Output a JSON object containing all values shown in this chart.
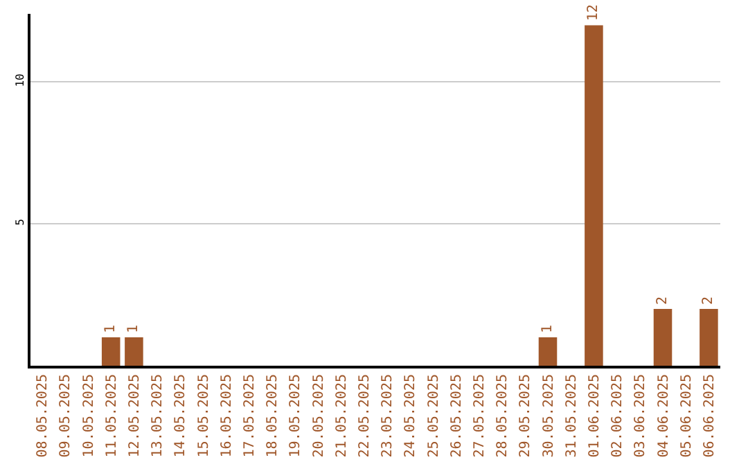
{
  "chart_data": {
    "type": "bar",
    "categories": [
      "08.05.2025",
      "09.05.2025",
      "10.05.2025",
      "11.05.2025",
      "12.05.2025",
      "13.05.2025",
      "14.05.2025",
      "15.05.2025",
      "16.05.2025",
      "17.05.2025",
      "18.05.2025",
      "19.05.2025",
      "20.05.2025",
      "21.05.2025",
      "22.05.2025",
      "23.05.2025",
      "24.05.2025",
      "25.05.2025",
      "26.05.2025",
      "27.05.2025",
      "28.05.2025",
      "29.05.2025",
      "30.05.2025",
      "31.05.2025",
      "01.06.2025",
      "02.06.2025",
      "03.06.2025",
      "04.06.2025",
      "05.06.2025",
      "06.06.2025"
    ],
    "values": [
      0,
      0,
      0,
      1,
      1,
      0,
      0,
      0,
      0,
      0,
      0,
      0,
      0,
      0,
      0,
      0,
      0,
      0,
      0,
      0,
      0,
      0,
      1,
      0,
      12,
      0,
      0,
      2,
      0,
      2
    ],
    "value_labels": [
      null,
      null,
      null,
      "1",
      "1",
      null,
      null,
      null,
      null,
      null,
      null,
      null,
      null,
      null,
      null,
      null,
      null,
      null,
      null,
      null,
      null,
      null,
      "1",
      null,
      "12",
      null,
      null,
      "2",
      null,
      "2"
    ],
    "color": "#a0572a",
    "ylim": [
      0,
      12.4
    ],
    "yticks": [
      5,
      10
    ],
    "grid": "y",
    "legend": false
  }
}
